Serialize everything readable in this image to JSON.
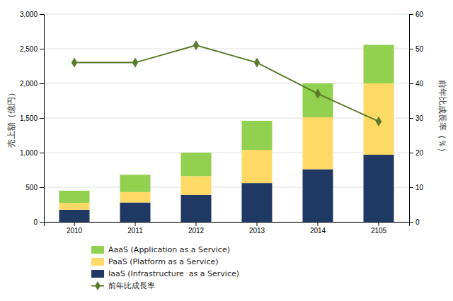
{
  "chart_data": {
    "type": "bar",
    "stacked": true,
    "grid": true,
    "legend": "bottom",
    "categories": [
      "2010",
      "2011",
      "2012",
      "2013",
      "2014",
      "2105"
    ],
    "ylabel": "売上額（億円）",
    "y2label": "前年比成長率（％）",
    "ylim": [
      0,
      3000
    ],
    "yticks": [
      0,
      500,
      {
        "value": 1000,
        "label": "1,000"
      },
      {
        "value": 1500,
        "label": "1,500"
      },
      {
        "value": 2000,
        "label": "2,000"
      },
      {
        "value": 2500,
        "label": "2,500"
      },
      {
        "value": 3000,
        "label": "3,000"
      }
    ],
    "y2lim": [
      0,
      60
    ],
    "y2ticks": [
      0,
      10,
      20,
      30,
      40,
      50,
      60
    ],
    "series": [
      {
        "name": "IaaS (Infrastructure  as a Service)",
        "color": "#1F3864",
        "values": [
          175,
          280,
          390,
          560,
          760,
          970
        ]
      },
      {
        "name": "PaaS (Platform as a Service)",
        "color": "#FFD966",
        "values": [
          100,
          150,
          270,
          480,
          750,
          1030
        ]
      },
      {
        "name": "AaaS (Application as a Service)",
        "color": "#92D050",
        "values": [
          175,
          250,
          340,
          420,
          490,
          557
        ]
      },
      {
        "name": "前年比成長率",
        "type": "line",
        "axis": "y2",
        "color": "#5A7A2B",
        "marker": "diamond",
        "values": [
          46,
          46,
          51,
          46,
          37,
          29
        ]
      }
    ]
  }
}
